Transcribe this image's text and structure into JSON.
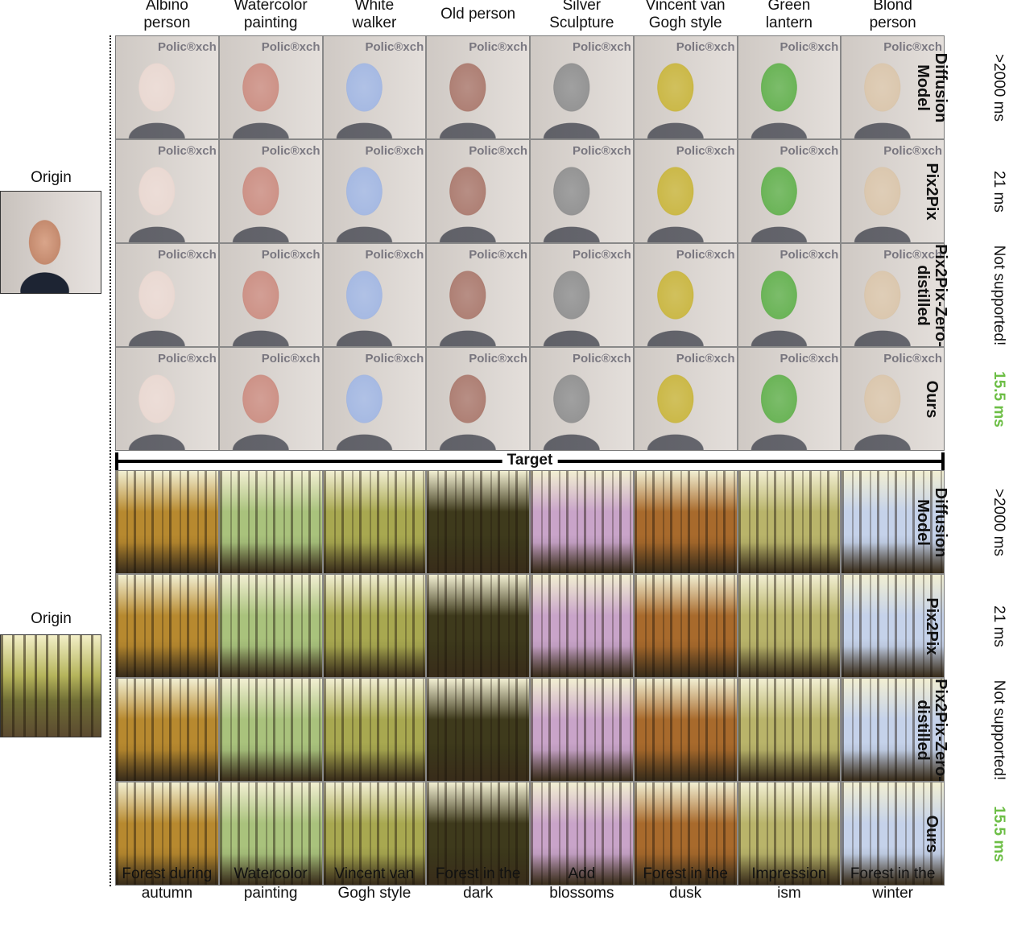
{
  "face_columns": [
    {
      "line1": "Albino",
      "line2": "person"
    },
    {
      "line1": "Watercolor",
      "line2": "painting"
    },
    {
      "line1": "White",
      "line2": "walker"
    },
    {
      "line1": "Old person",
      "line2": ""
    },
    {
      "line1": "Silver",
      "line2": "Sculpture"
    },
    {
      "line1": "Vincent van",
      "line2": "Gogh style"
    },
    {
      "line1": "Green",
      "line2": "lantern"
    },
    {
      "line1": "Blond",
      "line2": "person"
    }
  ],
  "forest_columns": [
    {
      "line1": "Forest during",
      "line2": "autumn"
    },
    {
      "line1": "Watercolor",
      "line2": "painting"
    },
    {
      "line1": "Vincent van",
      "line2": "Gogh style"
    },
    {
      "line1": "Forest in the",
      "line2": "dark"
    },
    {
      "line1": "Add",
      "line2": "blossoms"
    },
    {
      "line1": "Forest in the",
      "line2": "dusk"
    },
    {
      "line1": "Impression",
      "line2": "ism"
    },
    {
      "line1": "Forest in the",
      "line2": "winter"
    }
  ],
  "origin_label": "Origin",
  "target_label": "Target",
  "rows": [
    {
      "method_line1": "Diffusion",
      "method_line2": "Model",
      "timing": ">2000 ms",
      "good": false
    },
    {
      "method_line1": "Pix2Pix",
      "method_line2": "",
      "timing": "21 ms",
      "good": false
    },
    {
      "method_line1": "Pix2Pix-Zero-",
      "method_line2": "distilled",
      "timing": "Not supported!",
      "good": false
    },
    {
      "method_line1": "Ours",
      "method_line2": "",
      "timing": "15.5 ms",
      "good": true
    }
  ],
  "colors": {
    "highlight": "#6cbe45"
  },
  "face_tints": [
    "#e8d6cf",
    "#c98a7e",
    "#9fb4e0",
    "#a8766a",
    "#8c8c8c",
    "#c7b33a",
    "#5fae4a",
    "#d8c3a8"
  ],
  "forest_tints": [
    "#b7892f",
    "#a9c27c",
    "#a8a850",
    "#3e3a1c",
    "#c9a4c9",
    "#a86a2c",
    "#b9b46a",
    "#c5d2ea"
  ]
}
